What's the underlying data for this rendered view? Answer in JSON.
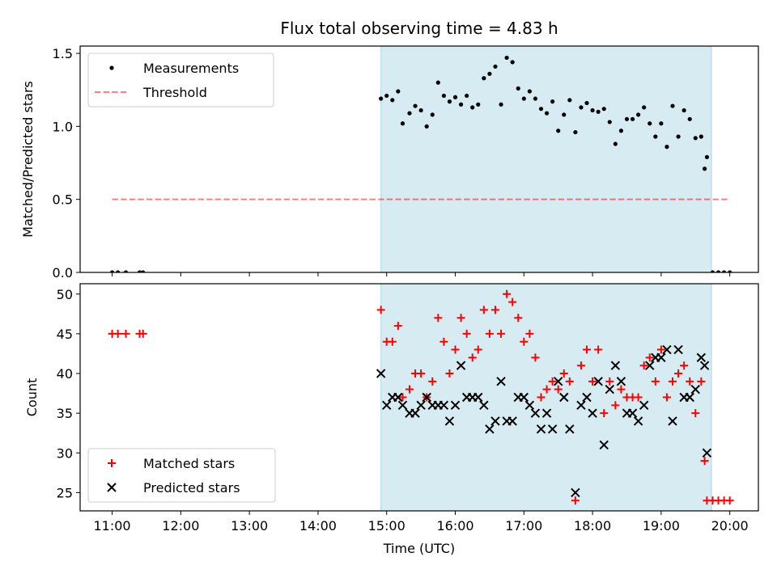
{
  "figure": {
    "title": "Flux total observing time = 4.83 h",
    "colors": {
      "shade": "#add8e6",
      "measure": "#000000",
      "threshold": "#ff0000",
      "matched": "#ff0000",
      "predicted": "#000000"
    }
  },
  "chart_data": [
    {
      "type": "scatter",
      "panel": "top",
      "title": "Flux total observing time = 4.83 h",
      "xlabel": "",
      "ylabel": "Matched/Predicted stars",
      "xlim": [
        "10:32",
        "20:25"
      ],
      "ylim": [
        0,
        1.55
      ],
      "yticks": [
        0.0,
        0.5,
        1.0,
        1.5
      ],
      "yticklabels": [
        "0.0",
        "0.5",
        "1.0",
        "1.5"
      ],
      "shaded_interval": [
        "14:55",
        "19:44"
      ],
      "legend": {
        "position": "top-left",
        "entries": [
          "Measurements",
          "Threshold"
        ]
      },
      "threshold": {
        "name": "Threshold",
        "y": 0.5,
        "x": [
          "11:00",
          "19:58"
        ],
        "style": "dashed"
      },
      "series": [
        {
          "name": "Measurements",
          "marker": "dot",
          "x": [
            "11:00",
            "11:05",
            "11:12",
            "11:24",
            "11:27",
            "14:55",
            "15:00",
            "15:05",
            "15:10",
            "15:14",
            "15:20",
            "15:25",
            "15:30",
            "15:35",
            "15:40",
            "15:45",
            "15:50",
            "15:55",
            "16:00",
            "16:05",
            "16:10",
            "16:15",
            "16:20",
            "16:25",
            "16:30",
            "16:35",
            "16:40",
            "16:45",
            "16:50",
            "16:55",
            "17:00",
            "17:05",
            "17:10",
            "17:15",
            "17:20",
            "17:25",
            "17:30",
            "17:35",
            "17:40",
            "17:45",
            "17:50",
            "17:55",
            "18:00",
            "18:05",
            "18:10",
            "18:15",
            "18:20",
            "18:25",
            "18:30",
            "18:35",
            "18:40",
            "18:45",
            "18:50",
            "18:55",
            "19:00",
            "19:05",
            "19:10",
            "19:15",
            "19:20",
            "19:25",
            "19:30",
            "19:35",
            "19:38",
            "19:40",
            "19:45",
            "19:50",
            "19:55",
            "20:00"
          ],
          "y": [
            0,
            0,
            0,
            0,
            0,
            1.19,
            1.21,
            1.18,
            1.24,
            1.02,
            1.09,
            1.14,
            1.11,
            1.0,
            1.08,
            1.3,
            1.21,
            1.17,
            1.2,
            1.15,
            1.21,
            1.13,
            1.15,
            1.33,
            1.36,
            1.41,
            1.15,
            1.47,
            1.44,
            1.26,
            1.19,
            1.24,
            1.19,
            1.12,
            1.09,
            1.17,
            0.97,
            1.08,
            1.18,
            0.96,
            1.13,
            1.16,
            1.11,
            1.1,
            1.12,
            1.03,
            0.88,
            0.97,
            1.05,
            1.05,
            1.08,
            1.13,
            1.02,
            0.93,
            1.02,
            0.86,
            1.14,
            0.93,
            1.11,
            1.05,
            0.92,
            0.93,
            0.71,
            0.79,
            0,
            0,
            0,
            0
          ]
        }
      ]
    },
    {
      "type": "scatter",
      "panel": "bottom",
      "xlabel": "Time (UTC)",
      "ylabel": "Count",
      "xlim": [
        "10:32",
        "20:25"
      ],
      "ylim": [
        22.7,
        51.3
      ],
      "xticklabels": [
        "11:00",
        "12:00",
        "13:00",
        "14:00",
        "15:00",
        "16:00",
        "17:00",
        "18:00",
        "19:00",
        "20:00"
      ],
      "yticks": [
        25,
        30,
        35,
        40,
        45,
        50
      ],
      "yticklabels": [
        "25",
        "30",
        "35",
        "40",
        "45",
        "50"
      ],
      "shaded_interval": [
        "14:55",
        "19:44"
      ],
      "legend": {
        "position": "bottom-left",
        "entries": [
          "Matched stars",
          "Predicted stars"
        ]
      },
      "series": [
        {
          "name": "Matched stars",
          "marker": "plus",
          "x": [
            "11:00",
            "11:05",
            "11:12",
            "11:24",
            "11:27",
            "14:55",
            "15:00",
            "15:05",
            "15:10",
            "15:14",
            "15:20",
            "15:25",
            "15:30",
            "15:35",
            "15:40",
            "15:45",
            "15:50",
            "15:55",
            "16:00",
            "16:05",
            "16:10",
            "16:15",
            "16:20",
            "16:25",
            "16:30",
            "16:35",
            "16:40",
            "16:45",
            "16:50",
            "16:55",
            "17:00",
            "17:05",
            "17:10",
            "17:15",
            "17:20",
            "17:25",
            "17:30",
            "17:35",
            "17:40",
            "17:45",
            "17:50",
            "17:55",
            "18:00",
            "18:05",
            "18:10",
            "18:15",
            "18:20",
            "18:25",
            "18:30",
            "18:35",
            "18:40",
            "18:45",
            "18:50",
            "18:55",
            "19:00",
            "19:05",
            "19:10",
            "19:15",
            "19:20",
            "19:25",
            "19:30",
            "19:35",
            "19:38",
            "19:40",
            "19:45",
            "19:50",
            "19:55",
            "20:00"
          ],
          "y": [
            45,
            45,
            45,
            45,
            45,
            48,
            44,
            44,
            46,
            37,
            38,
            40,
            40,
            37,
            39,
            47,
            44,
            40,
            43,
            47,
            45,
            42,
            43,
            48,
            45,
            48,
            45,
            50,
            49,
            47,
            44,
            45,
            42,
            37,
            38,
            39,
            38,
            40,
            39,
            24,
            41,
            43,
            39,
            43,
            35,
            39,
            36,
            38,
            37,
            37,
            37,
            41,
            42,
            39,
            43,
            37,
            39,
            40,
            41,
            39,
            35,
            39,
            29,
            24,
            24,
            24,
            24,
            24
          ]
        },
        {
          "name": "Predicted stars",
          "marker": "x",
          "x": [
            "14:55",
            "15:00",
            "15:05",
            "15:10",
            "15:14",
            "15:20",
            "15:25",
            "15:30",
            "15:35",
            "15:40",
            "15:45",
            "15:50",
            "15:55",
            "16:00",
            "16:05",
            "16:10",
            "16:15",
            "16:20",
            "16:25",
            "16:30",
            "16:35",
            "16:40",
            "16:45",
            "16:50",
            "16:55",
            "17:00",
            "17:05",
            "17:10",
            "17:15",
            "17:20",
            "17:25",
            "17:30",
            "17:35",
            "17:40",
            "17:45",
            "17:50",
            "17:55",
            "18:00",
            "18:05",
            "18:10",
            "18:15",
            "18:20",
            "18:25",
            "18:30",
            "18:35",
            "18:40",
            "18:45",
            "18:50",
            "18:55",
            "19:00",
            "19:05",
            "19:10",
            "19:15",
            "19:20",
            "19:25",
            "19:30",
            "19:35",
            "19:38",
            "19:40"
          ],
          "y": [
            40,
            36,
            37,
            37,
            36,
            35,
            35,
            36,
            37,
            36,
            36,
            36,
            34,
            36,
            41,
            37,
            37,
            37,
            36,
            33,
            34,
            39,
            34,
            34,
            37,
            37,
            36,
            35,
            33,
            35,
            33,
            39,
            37,
            33,
            25,
            36,
            37,
            35,
            39,
            31,
            38,
            41,
            39,
            35,
            35,
            34,
            36,
            41,
            42,
            42,
            43,
            34,
            43,
            37,
            37,
            38,
            42,
            41,
            30
          ]
        }
      ]
    }
  ]
}
